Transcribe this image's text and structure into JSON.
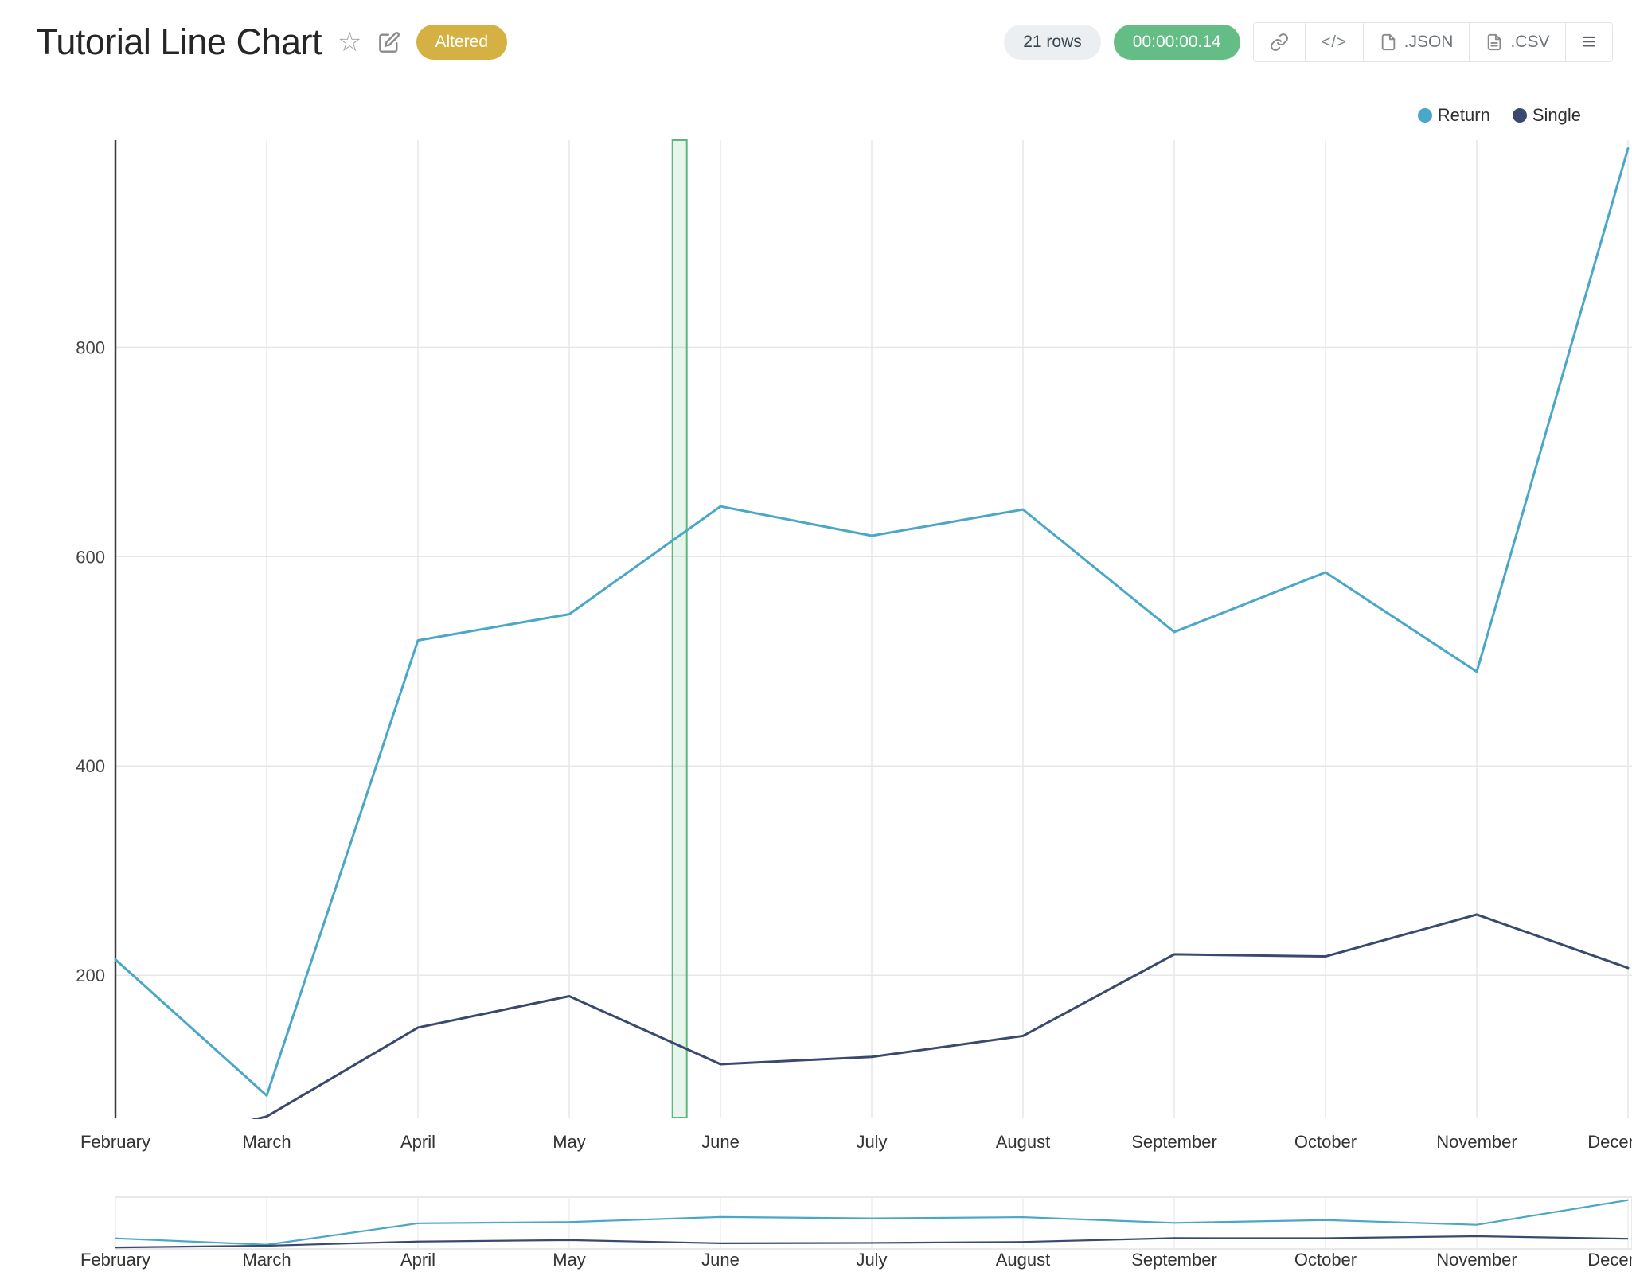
{
  "header": {
    "title": "Tutorial Line Chart",
    "altered_badge": "Altered",
    "rows_badge": "21 rows",
    "timer_badge": "00:00:00.14",
    "toolbar": {
      "code_label": "</>",
      "json_label": ".JSON",
      "csv_label": ".CSV"
    }
  },
  "icons": {
    "star": "☆",
    "menu": "≡"
  },
  "colors": {
    "altered_badge_bg": "#D4B142",
    "timer_badge_bg": "#63BD84",
    "rows_badge_bg": "#ECEFF1",
    "grid": "#e7e7e7",
    "selection_fill": "rgba(102,187,125,0.15)",
    "selection_stroke": "#5CB87A"
  },
  "chart_data": {
    "type": "line",
    "title": "Tutorial Line Chart",
    "categories": [
      "February",
      "March",
      "April",
      "May",
      "June",
      "July",
      "August",
      "September",
      "October",
      "November",
      "December"
    ],
    "series": [
      {
        "name": "Return",
        "color": "#4BA7C7",
        "values": [
          215,
          85,
          520,
          545,
          648,
          620,
          645,
          528,
          585,
          490,
          990
        ]
      },
      {
        "name": "Single",
        "color": "#3A4A6F",
        "values": [
          30,
          65,
          150,
          180,
          115,
          122,
          142,
          220,
          218,
          258,
          207
        ]
      }
    ],
    "xlabel": "",
    "ylabel": "",
    "yticks": [
      200,
      400,
      600,
      800
    ],
    "ylim": [
      64,
      998
    ],
    "grid": true,
    "legend_position": "top-right",
    "legend": [
      "Return",
      "Single"
    ],
    "selection_band": {
      "between": [
        "May",
        "June"
      ],
      "fraction": 0.73
    },
    "rangeslider": true
  }
}
